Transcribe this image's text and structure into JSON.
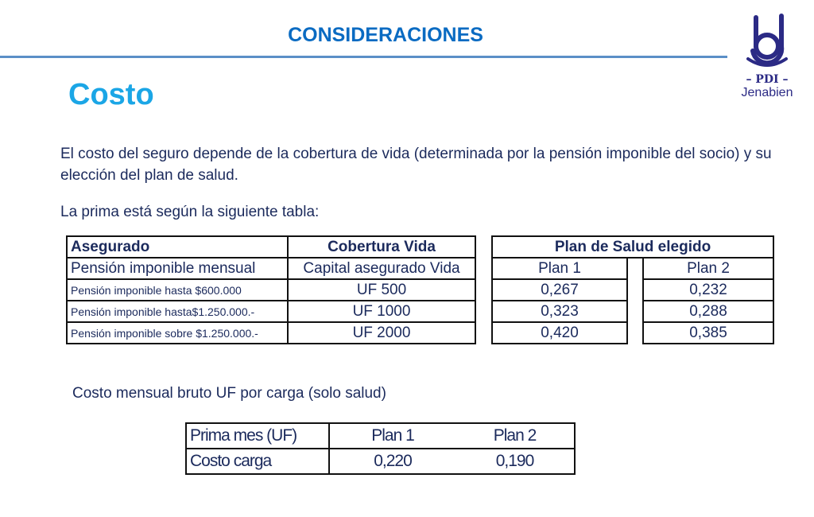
{
  "header": {
    "title": "CONSIDERACIONES"
  },
  "logo": {
    "text": "PDI",
    "subtitle": "Jenabien"
  },
  "slide": {
    "title": "Costo",
    "paragraph": "El costo del seguro depende de la cobertura de vida (determinada por la pensión imponible del socio) y su elección del plan de salud.",
    "intro": "La prima está según la siguiente tabla:",
    "bottom_caption": "Costo mensual bruto UF por carga (solo salud)"
  },
  "coverage_table": {
    "headers": [
      "Asegurado",
      "Cobertura Vida"
    ],
    "subheaders": [
      "Pensión imponible mensual",
      "Capital asegurado Vida"
    ],
    "rows": [
      [
        "Pensión imponible hasta $600.000",
        "UF 500"
      ],
      [
        "Pensión imponible hasta$1.250.000.-",
        "UF 1000"
      ],
      [
        "Pensión imponible sobre $1.250.000.-",
        "UF 2000"
      ]
    ]
  },
  "health_table": {
    "header": "Plan de Salud elegido",
    "columns": [
      "Plan 1",
      "Plan 2"
    ],
    "rows": [
      [
        "0,267",
        "0,232"
      ],
      [
        "0,323",
        "0,288"
      ],
      [
        "0,420",
        "0,385"
      ]
    ]
  },
  "dependent_table": {
    "headers": [
      "Prima mes (UF)",
      "Plan 1",
      "Plan 2"
    ],
    "rows": [
      [
        "Costo carga",
        "0,220",
        "0,190"
      ]
    ]
  }
}
